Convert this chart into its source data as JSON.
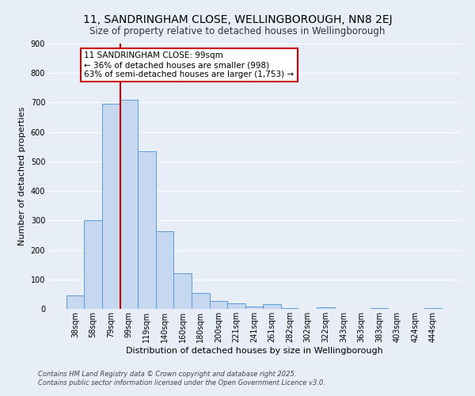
{
  "title": "11, SANDRINGHAM CLOSE, WELLINGBOROUGH, NN8 2EJ",
  "subtitle": "Size of property relative to detached houses in Wellingborough",
  "xlabel": "Distribution of detached houses by size in Wellingborough",
  "ylabel": "Number of detached properties",
  "bar_labels": [
    "38sqm",
    "58sqm",
    "79sqm",
    "99sqm",
    "119sqm",
    "140sqm",
    "160sqm",
    "180sqm",
    "200sqm",
    "221sqm",
    "241sqm",
    "261sqm",
    "282sqm",
    "302sqm",
    "322sqm",
    "343sqm",
    "363sqm",
    "383sqm",
    "403sqm",
    "424sqm",
    "444sqm"
  ],
  "bar_values": [
    45,
    300,
    695,
    710,
    535,
    262,
    122,
    55,
    28,
    18,
    8,
    15,
    3,
    0,
    5,
    0,
    0,
    3,
    0,
    0,
    2
  ],
  "bar_color": "#c5d8f0",
  "bar_edge_color": "#5b9bd5",
  "vline_color": "#cc0000",
  "annotation_text": "11 SANDRINGHAM CLOSE: 99sqm\n← 36% of detached houses are smaller (998)\n63% of semi-detached houses are larger (1,753) →",
  "annotation_box_color": "#cc0000",
  "background_color": "#e8eef8",
  "grid_color": "#ffffff",
  "footer_line1": "Contains HM Land Registry data © Crown copyright and database right 2025.",
  "footer_line2": "Contains public sector information licensed under the Open Government Licence v3.0.",
  "ylim": [
    0,
    900
  ],
  "yticks": [
    0,
    100,
    200,
    300,
    400,
    500,
    600,
    700,
    800,
    900
  ],
  "title_fontsize": 10,
  "subtitle_fontsize": 8.5,
  "axis_label_fontsize": 8,
  "tick_fontsize": 7,
  "annotation_fontsize": 7.5,
  "footer_fontsize": 6
}
